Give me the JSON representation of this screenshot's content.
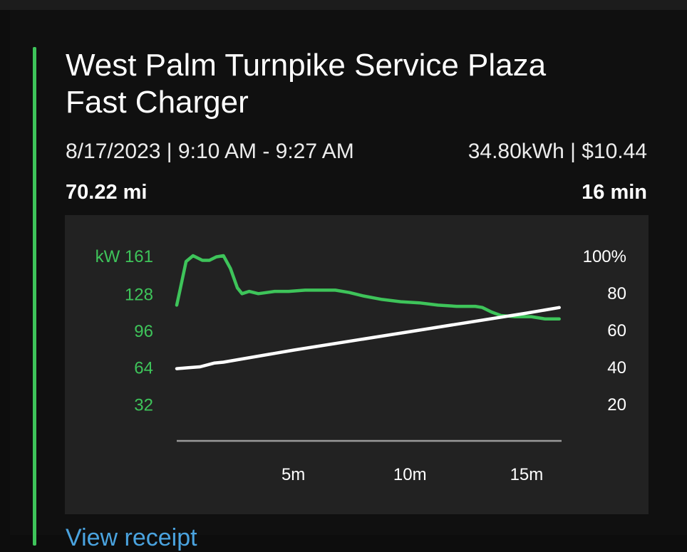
{
  "session": {
    "title_line1": "West Palm Turnpike Service Plaza",
    "title_line2": "Fast Charger",
    "date_time": "8/17/2023 | 9:10 AM - 9:27 AM",
    "energy_cost": "34.80kWh | $10.44",
    "distance": "70.22 mi",
    "duration": "16 min",
    "link_label": "View receipt"
  },
  "colors": {
    "accent": "#3ec45a",
    "soc_line": "#ffffff",
    "panel": "#222222",
    "link": "#4aa3df"
  },
  "chart_data": {
    "type": "line",
    "x_unit": "min",
    "x_ticks": [
      5,
      10,
      15
    ],
    "x_tick_labels": [
      "5m",
      "10m",
      "15m"
    ],
    "xlim": [
      0,
      16.5
    ],
    "left_axis_label": "kW",
    "left_ticks": [
      32,
      64,
      96,
      128,
      161
    ],
    "left_tick_labels": [
      "32",
      "64",
      "96",
      "128",
      "161"
    ],
    "left_ylim": [
      0,
      161
    ],
    "right_ticks": [
      20,
      40,
      60,
      80,
      100
    ],
    "right_tick_labels": [
      "20",
      "40",
      "60",
      "80",
      "100%"
    ],
    "right_ylim": [
      0,
      100
    ],
    "series": [
      {
        "axis": "left",
        "color": "#3ec45a",
        "points": [
          [
            0,
            118
          ],
          [
            0.15,
            132
          ],
          [
            0.4,
            156
          ],
          [
            0.7,
            161
          ],
          [
            1.1,
            157
          ],
          [
            1.4,
            157
          ],
          [
            1.7,
            160
          ],
          [
            2.0,
            161
          ],
          [
            2.3,
            150
          ],
          [
            2.6,
            133
          ],
          [
            2.8,
            128
          ],
          [
            3.1,
            130
          ],
          [
            3.5,
            128
          ],
          [
            4.2,
            130
          ],
          [
            4.8,
            130
          ],
          [
            5.5,
            131
          ],
          [
            6.2,
            131
          ],
          [
            6.8,
            131
          ],
          [
            7.4,
            129
          ],
          [
            8.0,
            126
          ],
          [
            8.8,
            123
          ],
          [
            9.6,
            121
          ],
          [
            10.4,
            120
          ],
          [
            11.2,
            118
          ],
          [
            12.0,
            117
          ],
          [
            12.8,
            117
          ],
          [
            13.1,
            116
          ],
          [
            13.5,
            112
          ],
          [
            13.9,
            109
          ],
          [
            14.5,
            108
          ],
          [
            15.2,
            108
          ],
          [
            15.8,
            106
          ],
          [
            16.4,
            106
          ]
        ]
      },
      {
        "axis": "right",
        "points": [
          [
            0,
            39
          ],
          [
            0.5,
            39.5
          ],
          [
            1.0,
            40
          ],
          [
            1.6,
            42
          ],
          [
            2.0,
            42.5
          ],
          [
            5,
            49
          ],
          [
            10,
            59
          ],
          [
            15,
            69
          ],
          [
            16.4,
            72
          ]
        ]
      }
    ],
    "grid": false
  }
}
